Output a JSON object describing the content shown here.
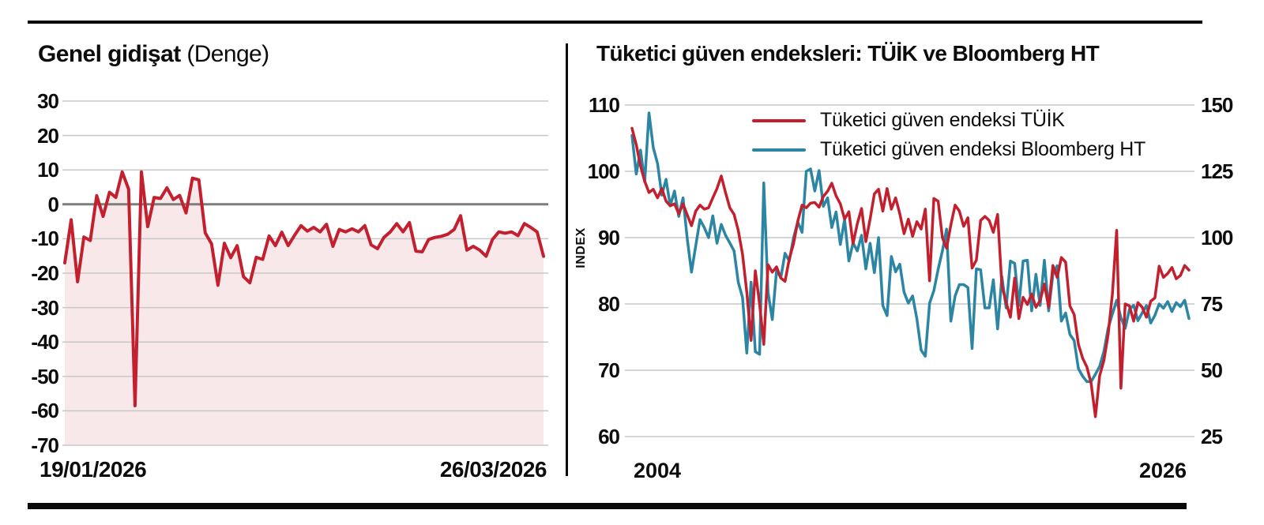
{
  "left_panel": {
    "title_bold": "Genel gidişat",
    "title_regular": " (Denge)",
    "x_label_start": "19/01/2026",
    "x_label_end": "26/03/2026"
  },
  "right_panel": {
    "title": "Tüketici güven endeksleri: TÜİK ve Bloomberg HT",
    "index_label": "INDEX",
    "x_label_start": "2004",
    "x_label_end": "2026",
    "legend_tuik": "Tüketici güven endeksi TÜİK",
    "legend_bht": "Tüketici güven endeksi Bloomberg HT"
  },
  "colors": {
    "tuik_red": "#c3202f",
    "bht_teal": "#2c86a3",
    "area_pink": "#f9e8ea",
    "grid": "#c7c7c7",
    "zero_line": "#7d7d7d",
    "rule_black": "#0a0a0a"
  },
  "chart_data": [
    {
      "type": "area",
      "title": "Genel gidişat (Denge)",
      "series_name": "Denge",
      "x_start_label": "19/01/2026",
      "x_end_label": "26/03/2026",
      "ylim": [
        -70,
        30
      ],
      "y_ticks": [
        30,
        20,
        10,
        0,
        -10,
        -20,
        -30,
        -40,
        -50,
        -60,
        -70
      ],
      "grid": true,
      "values": [
        -17,
        -4.5,
        -22.5,
        -9.5,
        -10.5,
        2.5,
        -3.5,
        3.5,
        2,
        9.4,
        4.4,
        -58.5,
        9.4,
        -6.5,
        2,
        1.7,
        4.8,
        1.4,
        2.6,
        -2.5,
        7.6,
        7.1,
        -8.3,
        -11.5,
        -23.5,
        -11.3,
        -15.5,
        -12,
        -21,
        -22.8,
        -15.4,
        -16,
        -9.2,
        -12,
        -8.1,
        -12,
        -9,
        -6.2,
        -7.8,
        -6.7,
        -8,
        -5.8,
        -12.2,
        -7.3,
        -8,
        -7.1,
        -8,
        -6.2,
        -11.8,
        -12.9,
        -9.6,
        -8,
        -5.6,
        -8,
        -5.3,
        -13.6,
        -13.8,
        -10.2,
        -9.6,
        -9.3,
        -8.7,
        -7.3,
        -3.3,
        -13.3,
        -12.2,
        -13.3,
        -15.1,
        -10.2,
        -8,
        -8.4,
        -8,
        -9.1,
        -5.6,
        -6.7,
        -8,
        -15.1
      ]
    },
    {
      "type": "line",
      "title": "Tüketici güven endeksleri: TÜİK ve Bloomberg HT",
      "ylabel": "INDEX",
      "x_range": [
        2004,
        2026
      ],
      "ylim_left": [
        60,
        110
      ],
      "ylim_right": [
        25,
        150
      ],
      "y_ticks_left": [
        110,
        100,
        90,
        80,
        70,
        60
      ],
      "y_ticks_right": [
        150,
        125,
        100,
        75,
        50,
        25
      ],
      "grid": true,
      "legend_position": "top",
      "series": [
        {
          "name": "Tüketici güven endeksi TÜİK",
          "axis": "left",
          "color": "#c3202f",
          "values": [
            106.5,
            104,
            100.8,
            98.5,
            96.8,
            97.3,
            96,
            97.4,
            95.5,
            94.8,
            95.1,
            93.6,
            95.1,
            93.4,
            91.8,
            94,
            94.9,
            94.3,
            94.5,
            96,
            97.4,
            99.3,
            96.8,
            94.5,
            93.5,
            91.1,
            87.5,
            81.8,
            74.5,
            85,
            80,
            73.9,
            85.9,
            84.8,
            85.6,
            83.9,
            83.4,
            86.8,
            89.1,
            92.5,
            94.9,
            94.5,
            95.2,
            95.3,
            94.6,
            96.2,
            97,
            98.2,
            96.3,
            95.1,
            92.8,
            93.9,
            89.1,
            92.1,
            94.4,
            89.4,
            92.8,
            96.6,
            97.3,
            94,
            97.4,
            94.3,
            96,
            93.6,
            90.6,
            92.8,
            90.2,
            92.4,
            91.3,
            94.3,
            83.5,
            95.9,
            95.5,
            90,
            88.4,
            91.9,
            94.9,
            94,
            91.7,
            93,
            85.4,
            86.6,
            92.6,
            93.2,
            92.6,
            90.8,
            93.5,
            82.8,
            80.2,
            78,
            83.9,
            77.8,
            81,
            79.9,
            81.5,
            79.5,
            80.5,
            83,
            79.5,
            85.8,
            84,
            87,
            86.3,
            79.7,
            78.4,
            73.9,
            71.8,
            70.5,
            68,
            63,
            69.2,
            71.5,
            75.4,
            81.5,
            91.1,
            67.3,
            80,
            79.7,
            77.4,
            80.2,
            79.5,
            78,
            80.4,
            80.9,
            85.7,
            84,
            84.6,
            85.5,
            83.8,
            84.3,
            85.8,
            85.1
          ]
        },
        {
          "name": "Tüketici güven endeksi Bloomberg HT",
          "axis": "right",
          "color": "#2c86a3",
          "values": [
            138.5,
            124,
            133,
            121,
            147,
            134,
            128,
            116,
            122,
            112,
            117.6,
            108,
            115,
            99.4,
            87,
            97,
            106.8,
            103.8,
            100,
            108.2,
            97.9,
            105,
            100.9,
            98,
            95,
            83.2,
            77.4,
            56.5,
            83.2,
            57,
            56,
            120.6,
            79.4,
            69.1,
            87.6,
            84.9,
            94.1,
            91.2,
            100,
            105.9,
            102,
            125,
            125.9,
            117.6,
            125.3,
            111.8,
            115,
            103.8,
            109.7,
            97.4,
            106.8,
            91.2,
            98,
            95,
            100.9,
            88.2,
            97.9,
            86.8,
            100,
            74.4,
            70.6,
            92.9,
            87.1,
            90,
            79.4,
            75.3,
            78,
            69.4,
            57.6,
            55.3,
            75.3,
            80,
            88,
            95,
            103.2,
            68.5,
            78,
            82.3,
            82.3,
            81.2,
            58.2,
            88.2,
            87.9,
            73.5,
            73.5,
            84.1,
            65.6,
            85.3,
            73.5,
            91.2,
            90.3,
            74.4,
            91.2,
            91.5,
            72.4,
            86.2,
            74.4,
            91.5,
            72.4,
            86.2,
            89.4,
            68.5,
            71.6,
            63.5,
            61.2,
            50.6,
            47.7,
            45.7,
            45.7,
            48.5,
            51.5,
            57.2,
            65.8,
            71.2,
            76.4,
            69.8,
            65.8,
            73,
            74.5,
            68.7,
            71.6,
            74.4,
            67.8,
            70.7,
            75,
            73.4,
            75.9,
            72.1,
            75.5,
            74,
            76.4,
            69.5
          ]
        }
      ]
    }
  ]
}
